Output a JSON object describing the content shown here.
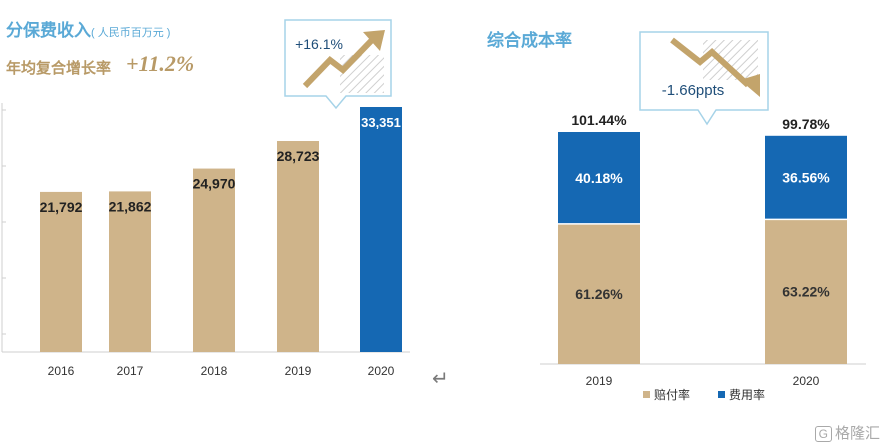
{
  "left": {
    "title": "分保费收入",
    "unit": "( 人民币百万元 )",
    "cagr_label": "年均复合增长率",
    "cagr_value": "+11.2%",
    "callout": "+16.1%"
  },
  "right": {
    "title": "综合成本率",
    "callout": "-1.66ppts"
  },
  "return_glyph": "↵",
  "watermark": "格隆汇",
  "colors": {
    "tan": "#cfb48a",
    "blue": "#1568b3",
    "title_blue": "#5aa9d6",
    "gold_text": "#b89a67"
  },
  "chart_data": [
    {
      "type": "bar",
      "categories": [
        "2016",
        "2017",
        "2018",
        "2019",
        "2020"
      ],
      "values": [
        21792,
        21862,
        24970,
        28723,
        33351
      ],
      "labels": [
        "21,792",
        "21,862",
        "24,970",
        "28,723",
        "33,351"
      ],
      "highlight_index": 4,
      "title": "分保费收入",
      "ylim": [
        0,
        35000
      ]
    },
    {
      "type": "bar",
      "stacked": true,
      "categories": [
        "2019",
        "2020"
      ],
      "series": [
        {
          "name": "赔付率",
          "values": [
            61.26,
            63.22
          ],
          "labels": [
            "61.26%",
            "63.22%"
          ]
        },
        {
          "name": "费用率",
          "values": [
            40.18,
            36.56
          ],
          "labels": [
            "40.18%",
            "36.56%"
          ]
        }
      ],
      "totals": [
        101.44,
        99.78
      ],
      "total_labels": [
        "101.44%",
        "99.78%"
      ],
      "title": "综合成本率",
      "ylim": [
        0,
        110
      ]
    }
  ]
}
